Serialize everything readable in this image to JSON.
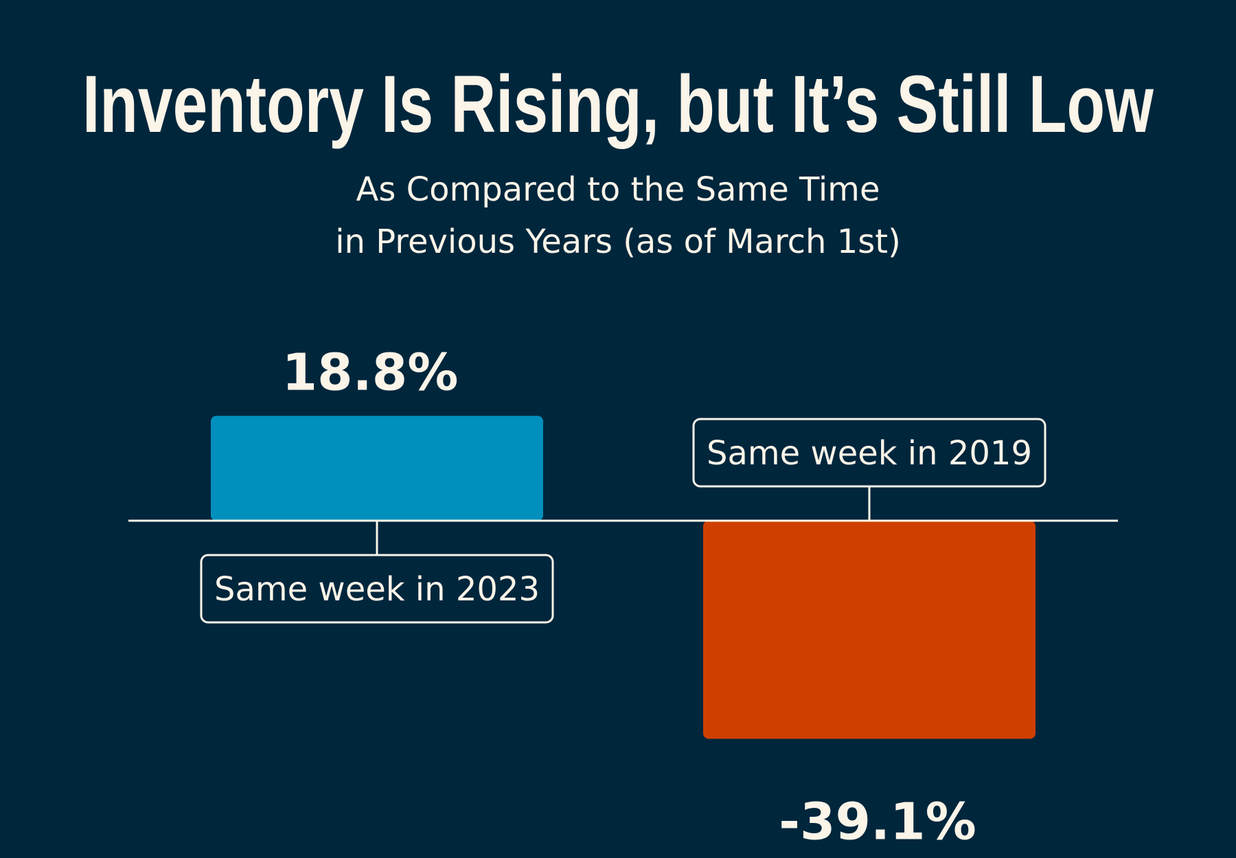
{
  "chart_data": {
    "type": "bar",
    "title": "Inventory Is Rising, but It’s Still Low",
    "subtitle": [
      "As Compared to the Same Time",
      "in Previous Years (as of March 1st)"
    ],
    "categories": [
      "Same week in 2023",
      "Same week in 2019"
    ],
    "values": [
      18.8,
      -39.1
    ],
    "value_labels": [
      "18.8%",
      "-39.1%"
    ],
    "unit": "%",
    "colors": [
      "#0090bd",
      "#cf4000"
    ],
    "ylim": [
      -39.1,
      18.8
    ],
    "grid": false,
    "legend": "none",
    "xlabel": "",
    "ylabel": ""
  },
  "colors": {
    "background": "#00263c",
    "text": "#fbf4e8",
    "baseline": "#fbf4e8"
  }
}
